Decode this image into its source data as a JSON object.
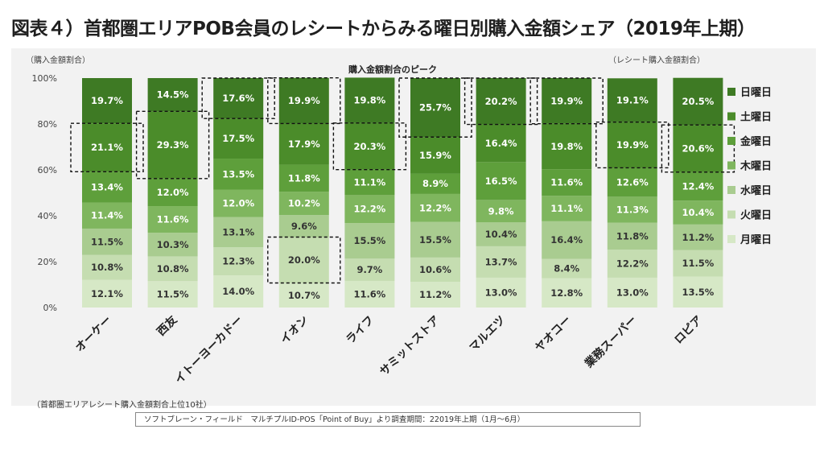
{
  "title": "図表４）首都圏エリアPOB会員のレシートからみる曜日別購入金額シェア（2019年上期）",
  "note": "（首都圏エリアレシート購入金額割合上位10社）",
  "source": "ソフトブレーン・フィールド　マルチプルID-POS「Point of Buy」より調査期間：22019年上期（1月～6月）",
  "chart_data": {
    "type": "bar",
    "stacked": true,
    "percent": true,
    "y_axis_label": "（購入金額割合）",
    "right_label": "（レシート購入金額割合）",
    "peak_label": "購入金額割合のピーク",
    "ylim": [
      0,
      100
    ],
    "yticks": [
      "0%",
      "20%",
      "40%",
      "60%",
      "80%",
      "100%"
    ],
    "legend_position": "right",
    "categories": [
      "オーケー",
      "西友",
      "イトーヨーカドー",
      "イオン",
      "ライフ",
      "サミットストア",
      "マルエツ",
      "ヤオコー",
      "業務スーパー",
      "ロピア"
    ],
    "series": [
      {
        "name": "月曜日",
        "color": "#d6e8c6",
        "values": [
          12.1,
          11.5,
          14.0,
          10.7,
          11.6,
          11.2,
          13.0,
          12.8,
          13.0,
          13.5
        ]
      },
      {
        "name": "火曜日",
        "color": "#c5ddb1",
        "values": [
          10.8,
          10.8,
          12.3,
          20.0,
          9.7,
          10.6,
          13.7,
          8.4,
          12.2,
          11.5
        ]
      },
      {
        "name": "水曜日",
        "color": "#a9cc90",
        "values": [
          11.5,
          10.3,
          13.1,
          9.6,
          15.5,
          15.5,
          10.4,
          16.4,
          11.8,
          11.2
        ]
      },
      {
        "name": "木曜日",
        "color": "#7fb65e",
        "values": [
          11.4,
          11.6,
          12.0,
          10.2,
          12.2,
          12.2,
          9.8,
          11.1,
          11.3,
          10.4
        ]
      },
      {
        "name": "金曜日",
        "color": "#5e9f3b",
        "values": [
          13.4,
          12.0,
          13.5,
          11.8,
          11.1,
          8.9,
          16.5,
          11.6,
          12.6,
          12.4
        ]
      },
      {
        "name": "土曜日",
        "color": "#4b8c2a",
        "values": [
          21.1,
          29.3,
          17.5,
          17.9,
          20.3,
          15.9,
          16.4,
          19.8,
          19.9,
          20.6
        ]
      },
      {
        "name": "日曜日",
        "color": "#3e7a24",
        "values": [
          19.7,
          14.5,
          17.6,
          19.9,
          19.8,
          25.7,
          20.2,
          19.9,
          19.1,
          20.5
        ]
      }
    ],
    "peaks": [
      {
        "category": "オーケー",
        "series": "土曜日"
      },
      {
        "category": "西友",
        "series": "土曜日"
      },
      {
        "category": "イトーヨーカドー",
        "series": "日曜日"
      },
      {
        "category": "イオン",
        "series": "火曜日"
      },
      {
        "category": "イオン",
        "series": "日曜日"
      },
      {
        "category": "ライフ",
        "series": "土曜日"
      },
      {
        "category": "サミットストア",
        "series": "日曜日"
      },
      {
        "category": "マルエツ",
        "series": "日曜日"
      },
      {
        "category": "ヤオコー",
        "series": "日曜日"
      },
      {
        "category": "業務スーパー",
        "series": "土曜日"
      },
      {
        "category": "ロピア",
        "series": "土曜日"
      }
    ]
  }
}
